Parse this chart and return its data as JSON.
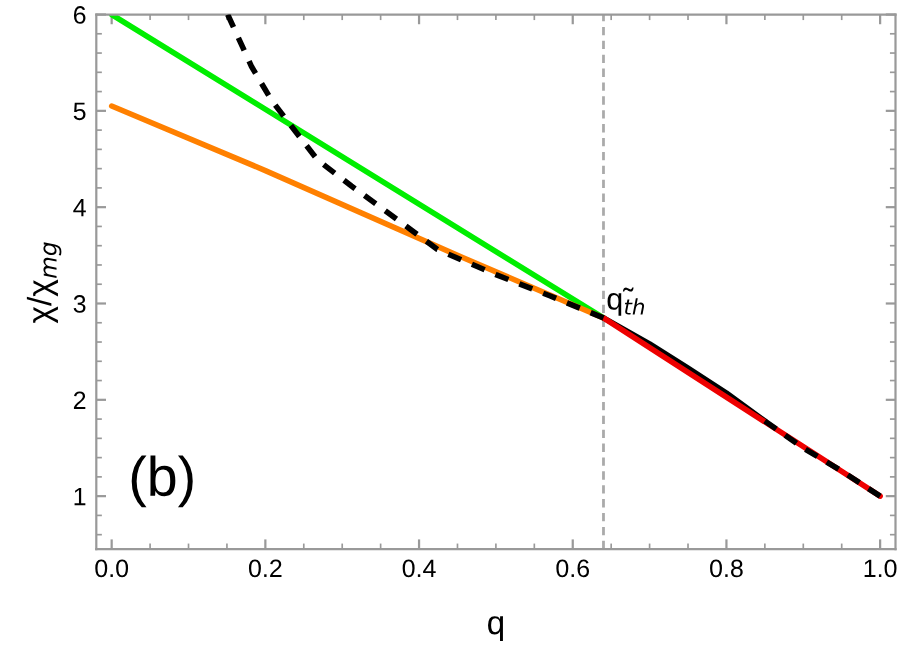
{
  "chart_data": {
    "type": "line",
    "xlabel": "q",
    "ylabel": "χ/χ$_{mg}$",
    "xlim": [
      -0.02,
      1.02
    ],
    "ylim": [
      0.45,
      6
    ],
    "xticks": [
      {
        "value": 0.0,
        "label": "0.0"
      },
      0.2,
      0.4,
      0.6,
      0.8,
      {
        "value": 1.0,
        "label": "1.0"
      }
    ],
    "yticks": [
      1,
      2,
      3,
      4,
      5,
      6
    ],
    "series": [
      {
        "color": "#00ee00",
        "x": [
          0,
          0.64
        ],
        "values": [
          6.0,
          2.85
        ],
        "line_style": "solid"
      },
      {
        "color": "#ff8000",
        "x": [
          0,
          0.2,
          0.45,
          0.64
        ],
        "values": [
          5.05,
          4.38,
          3.5,
          2.85
        ],
        "line_style": "solid"
      },
      {
        "color": "#000000",
        "x": [
          0.151,
          0.182,
          0.208,
          0.234,
          0.268,
          0.312,
          0.372,
          0.424,
          0.5,
          0.57,
          0.64
        ],
        "values": [
          6.0,
          5.46,
          5.11,
          4.84,
          4.49,
          4.22,
          3.87,
          3.56,
          3.3,
          3.08,
          2.85
        ],
        "line_style": "dashed"
      },
      {
        "color": "#000000",
        "x": [
          0.64,
          0.7,
          0.75,
          0.8,
          0.85
        ],
        "values": [
          2.85,
          2.58,
          2.33,
          2.07,
          1.78
        ],
        "line_style": "solid"
      },
      {
        "color": "#000000",
        "x": [
          0.85,
          0.9,
          0.95,
          1.0
        ],
        "values": [
          1.78,
          1.5,
          1.26,
          1.0
        ],
        "line_style": "dashed"
      },
      {
        "color": "#ee0000",
        "x": [
          0.64,
          1.0
        ],
        "values": [
          2.85,
          1.0
        ],
        "line_style": "solid"
      }
    ],
    "ref_lines": [
      {
        "axis": "x",
        "value": 0.64,
        "color": "#aaaaaa",
        "line_style": "dashed"
      }
    ],
    "annotations": [
      {
        "text": "q̃$_{th}$",
        "x": 0.64,
        "y": 2.85
      },
      "(b)"
    ],
    "grid": false,
    "legend": false,
    "marker": "none"
  }
}
